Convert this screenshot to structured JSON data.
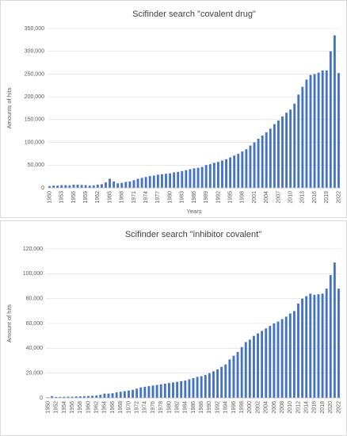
{
  "chart_data": [
    {
      "type": "bar",
      "title": "Scifinder search \"covalent drug\"",
      "x_label": "Years",
      "y_label": "Amounts of hits",
      "color": "#4472c4",
      "grid": true,
      "categories": [
        "1950",
        null,
        null,
        "1953",
        null,
        null,
        "1956",
        null,
        null,
        "1959",
        null,
        null,
        "1962",
        null,
        null,
        "1965",
        null,
        null,
        "1968",
        null,
        null,
        "1971",
        null,
        null,
        "1974",
        null,
        null,
        "1977",
        null,
        null,
        "1980",
        null,
        null,
        "1983",
        null,
        null,
        "1986",
        null,
        null,
        "1989",
        null,
        null,
        "1992",
        null,
        null,
        "1995",
        null,
        null,
        "1998",
        null,
        null,
        "2001",
        null,
        null,
        "2004",
        null,
        null,
        "2007",
        null,
        null,
        "2010",
        null,
        null,
        "2013",
        null,
        null,
        "2016",
        null,
        null,
        "2019",
        null,
        null,
        "2022"
      ],
      "values": [
        4000,
        5000,
        5000,
        6000,
        6000,
        5500,
        7000,
        7000,
        6500,
        6000,
        5000,
        5500,
        7000,
        8000,
        12000,
        20000,
        14000,
        10000,
        11000,
        13000,
        14000,
        17000,
        20000,
        22000,
        24000,
        26000,
        27000,
        29000,
        30000,
        31000,
        32000,
        34000,
        35000,
        37000,
        39000,
        41000,
        43000,
        44000,
        46000,
        50000,
        52000,
        55000,
        57000,
        60000,
        63000,
        67000,
        71000,
        75000,
        80000,
        85000,
        93000,
        100000,
        108000,
        115000,
        122000,
        130000,
        140000,
        148000,
        157000,
        165000,
        172000,
        185000,
        205000,
        222000,
        238000,
        248000,
        250000,
        253000,
        258000,
        258000,
        300000,
        335000,
        252000
      ],
      "ylim": [
        0,
        350000
      ],
      "yticks": [
        0,
        {
          "value": 50000,
          "label": "50,000"
        },
        {
          "value": 100000,
          "label": "100,000"
        },
        {
          "value": 150000,
          "label": "150,000"
        },
        {
          "value": 200000,
          "label": "200,000"
        },
        {
          "value": 250000,
          "label": "250,000"
        },
        {
          "value": 300000,
          "label": "300,000"
        },
        {
          "value": 350000,
          "label": "350,000"
        }
      ]
    },
    {
      "type": "bar",
      "title": "Scifinder search \"inhibitor covalent\"",
      "y_label": "Amount of hits",
      "color": "#4472c4",
      "grid": true,
      "categories": [
        "1950",
        null,
        "1952",
        null,
        "1954",
        null,
        "1956",
        null,
        "1958",
        null,
        "1960",
        null,
        "1962",
        null,
        "1964",
        null,
        "1966",
        null,
        "1968",
        null,
        "1970",
        null,
        "1972",
        null,
        "1974",
        null,
        "1976",
        null,
        "1978",
        null,
        "1980",
        null,
        "1982",
        null,
        "1984",
        null,
        "1986",
        null,
        "1988",
        null,
        "1990",
        null,
        "1992",
        null,
        "1994",
        null,
        "1996",
        null,
        "1998",
        null,
        "2000",
        null,
        "2002",
        null,
        "2004",
        null,
        "2006",
        null,
        "2008",
        null,
        "2010",
        null,
        "2012",
        null,
        "2014",
        null,
        "2016",
        null,
        "2018",
        null,
        "2020",
        null,
        "2022"
      ],
      "values": [
        500,
        1500,
        800,
        800,
        900,
        1000,
        1000,
        1200,
        1300,
        1400,
        1600,
        1800,
        2000,
        2500,
        3500,
        3500,
        3800,
        4500,
        5000,
        5500,
        6000,
        6500,
        7500,
        8500,
        9000,
        9500,
        10000,
        10500,
        11000,
        11500,
        12000,
        12500,
        13000,
        13500,
        14000,
        15000,
        16000,
        17000,
        17500,
        18500,
        20000,
        21500,
        23000,
        25000,
        27000,
        31000,
        34000,
        37000,
        41000,
        45000,
        47000,
        50000,
        52000,
        54000,
        56000,
        58000,
        60000,
        61500,
        63500,
        65500,
        68000,
        70000,
        76000,
        80000,
        82000,
        84000,
        83000,
        83500,
        84000,
        88000,
        99000,
        109000,
        88000
      ],
      "ylim": [
        0,
        120000
      ],
      "yticks": [
        0,
        {
          "value": 20000,
          "label": "20,000"
        },
        {
          "value": 40000,
          "label": "40,000"
        },
        {
          "value": 60000,
          "label": "60,000"
        },
        {
          "value": 80000,
          "label": "80,000"
        },
        {
          "value": 100000,
          "label": "100,000"
        },
        {
          "value": 120000,
          "label": "120,000"
        }
      ]
    }
  ]
}
